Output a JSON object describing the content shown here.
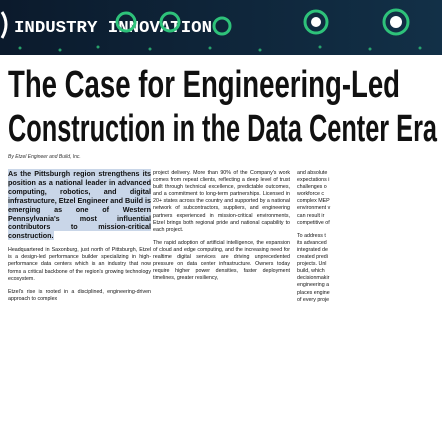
{
  "banner": {
    "label": "INDUSTRY INNOVATION"
  },
  "header": {
    "title_lines": [
      "The Case for Engineering-Led",
      "Construction in the Data Center Era"
    ],
    "byline": "By Etzel Engineer and Build, Inc."
  },
  "columns": [
    {
      "lead": "As the Pittsburgh region strengthens its position as a national leader in advanced computing, robotics, and digital infrastructure, Etzel Engineer and Build is emerging as one of Western Pennsylvania's most influential contributors to mission-critical construction.",
      "paragraphs": [
        "Headquartered in Saxonburg, just north of Pittsburgh, Etzel is a design-led performance builder specializing in high-performance data centers which is an industry that now forms a critical backbone of the region's growing technology ecosystem.",
        "Etzel's rise is rooted in a disciplined, engineering-driven approach to complex"
      ]
    },
    {
      "paragraphs": [
        "project delivery. More than 90% of the Company's work comes from repeat clients, reflecting a deep level of trust built through technical excellence, predictable outcomes, and a commitment to long-term partnerships. Licensed in 20+ states across the country and supported by a national network of subcontractors, suppliers, and engineering partners experienced in mission-critical environments, Etzel brings both regional pride and national capability to each project.",
        "The rapid adoption of artificial intelligence, the expansion of cloud and edge computing, and the increasing need for realtime digital services are driving unprecedented pressure on data center infrastructure. Owners today require higher power densities, faster deployment timelines, greater resiliency,"
      ]
    },
    {
      "line_groups": [
        [
          "and absolute",
          "expectations i",
          "challenges o",
          "workforce c",
          "complex MEP",
          "environment v",
          "can result ir",
          "competitive of"
        ],
        [
          "To address t",
          "its advanced",
          "integrated de",
          "created predi",
          "projects. Unl",
          "build, which",
          "decisionmakir",
          "engineering a",
          "places engine",
          "of every proje"
        ]
      ]
    }
  ]
}
